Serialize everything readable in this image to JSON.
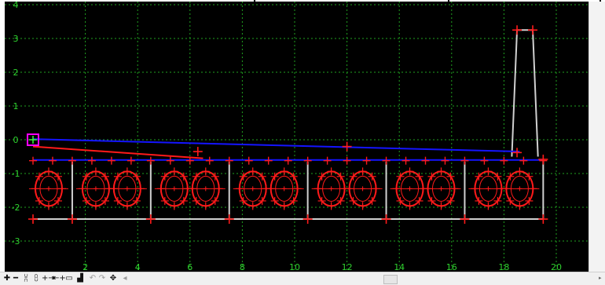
{
  "axes": {
    "y_ticks": [
      "4",
      "3",
      "2",
      "1",
      "0",
      "-1",
      "-2",
      "-3"
    ],
    "x_ticks": [
      "2",
      "4",
      "6",
      "8",
      "10",
      "12",
      "14",
      "16",
      "18",
      "20"
    ]
  },
  "colors": {
    "background": "#000000",
    "grid": "#1fa01f",
    "tick_label": "#2fd22f",
    "red_marker": "#ff1a1a",
    "blue_line": "#1414ff",
    "gray_line": "#d0d0d0",
    "selection": "#ff00ff",
    "selection_inner": "#3cff3c"
  },
  "toolbar": {
    "icons": [
      {
        "name": "add-point-icon",
        "glyph": "✚",
        "dim": false
      },
      {
        "name": "remove-point-icon",
        "glyph": "━",
        "dim": false
      },
      {
        "name": "snap-up-icon",
        "glyph": "⩈",
        "dim": false
      },
      {
        "name": "snap-down-icon",
        "glyph": "⩉",
        "dim": false
      },
      {
        "name": "insert-after-icon",
        "glyph": "+⇥",
        "dim": false
      },
      {
        "name": "insert-before-icon",
        "glyph": "⇤+",
        "dim": false
      },
      {
        "name": "window-icon",
        "glyph": "▭",
        "dim": false
      },
      {
        "name": "profile-icon",
        "glyph": "▟",
        "dim": false
      },
      {
        "name": "undo-icon",
        "glyph": "↶",
        "dim": true
      },
      {
        "name": "redo-icon",
        "glyph": "↷",
        "dim": true
      },
      {
        "name": "pan-icon",
        "glyph": "✥",
        "dim": false
      },
      {
        "name": "scroll-left-icon",
        "glyph": "◂",
        "dim": true
      }
    ]
  }
}
